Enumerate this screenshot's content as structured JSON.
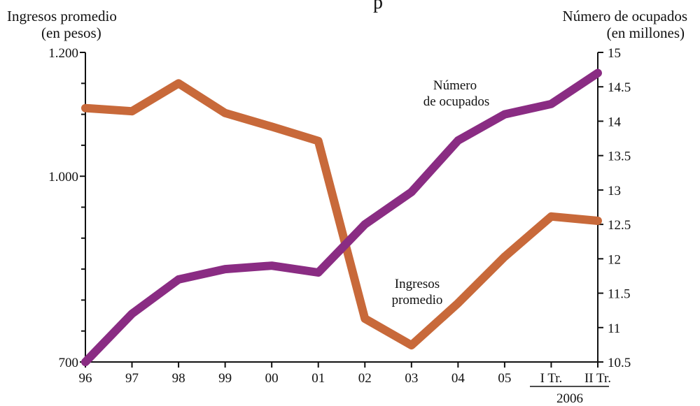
{
  "chart_data": {
    "type": "line",
    "title_fragment": "p",
    "left_axis": {
      "title_line1": "Ingresos promedio",
      "title_line2": "(en pesos)",
      "ylim": [
        700,
        1200
      ],
      "tick_labels": [
        "1.200",
        "1.000",
        "700"
      ],
      "tick_values": [
        1200,
        1000,
        700
      ],
      "minor_ticks": [
        750,
        800,
        850,
        900,
        950,
        1050,
        1100,
        1150
      ]
    },
    "right_axis": {
      "title_line1": "Número de ocupados",
      "title_line2": "(en millones)",
      "ylim": [
        10.5,
        15
      ],
      "tick_labels": [
        "15",
        "14.5",
        "14",
        "13.5",
        "13",
        "12.5",
        "12",
        "11.5",
        "11",
        "10.5"
      ],
      "tick_values": [
        15,
        14.5,
        14,
        13.5,
        13,
        12.5,
        12,
        11.5,
        11,
        10.5
      ]
    },
    "categories": [
      "96",
      "97",
      "98",
      "99",
      "00",
      "01",
      "02",
      "03",
      "04",
      "05",
      "I Tr.",
      "II Tr."
    ],
    "year_group_label": "2006",
    "series": [
      {
        "name": "Ingresos promedio",
        "label_line1": "Ingresos",
        "label_line2": "promedio",
        "axis": "left",
        "color": "#c8693a",
        "values": [
          1110,
          1105,
          1150,
          1102,
          1080,
          1057,
          770,
          727,
          795,
          870,
          935,
          928
        ]
      },
      {
        "name": "Número de ocupados",
        "label_line1": "Número",
        "label_line2": "de ocupados",
        "axis": "right",
        "color": "#8a2c83",
        "values": [
          10.5,
          11.2,
          11.7,
          11.85,
          11.9,
          11.8,
          12.5,
          12.97,
          13.72,
          14.1,
          14.25,
          14.7
        ]
      }
    ],
    "grid": false,
    "legend": "inline labels"
  }
}
